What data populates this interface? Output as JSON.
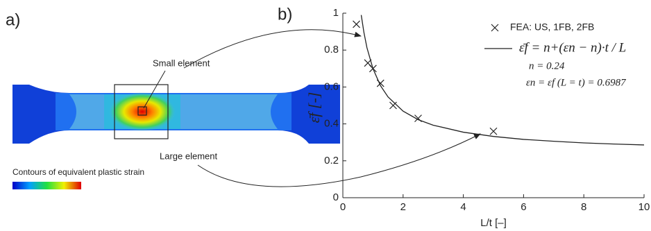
{
  "panel_a": {
    "label": "a)",
    "small_element": "Small element",
    "large_element": "Large element",
    "colorbar_title": "Contours of equivalent plastic strain"
  },
  "chart_data": {
    "type": "scatter",
    "panel_label": "b)",
    "x_label": "L/t [–]",
    "y_label": "ε̄f  [-]",
    "xlim": [
      0,
      10
    ],
    "ylim": [
      0,
      1
    ],
    "xticks": [
      0,
      2,
      4,
      6,
      8,
      10
    ],
    "yticks": [
      0,
      0.2,
      0.4,
      0.6,
      0.8,
      1
    ],
    "series": [
      {
        "name": "FEA: US, 1FB, 2FB",
        "type": "scatter",
        "color": "#222",
        "x": [
          0.45,
          0.83,
          1,
          1.25,
          1.67,
          2.5,
          5
        ],
        "values": [
          0.94,
          0.73,
          0.7,
          0.62,
          0.5,
          0.43,
          0.36
        ]
      },
      {
        "name": "ε̄f = n+(εn − n)·t / L",
        "type": "line",
        "color": "#222",
        "x": [
          0.61,
          0.7,
          0.8,
          1,
          1.25,
          1.5,
          2,
          2.5,
          3,
          4,
          5,
          6,
          7,
          8,
          9,
          10
        ],
        "values": [
          0.99,
          0.895,
          0.813,
          0.699,
          0.607,
          0.546,
          0.469,
          0.423,
          0.393,
          0.355,
          0.332,
          0.316,
          0.306,
          0.297,
          0.291,
          0.286
        ]
      }
    ],
    "annotations": [
      "n = 0.24",
      "εn = εf (L = t) = 0.6987"
    ]
  }
}
